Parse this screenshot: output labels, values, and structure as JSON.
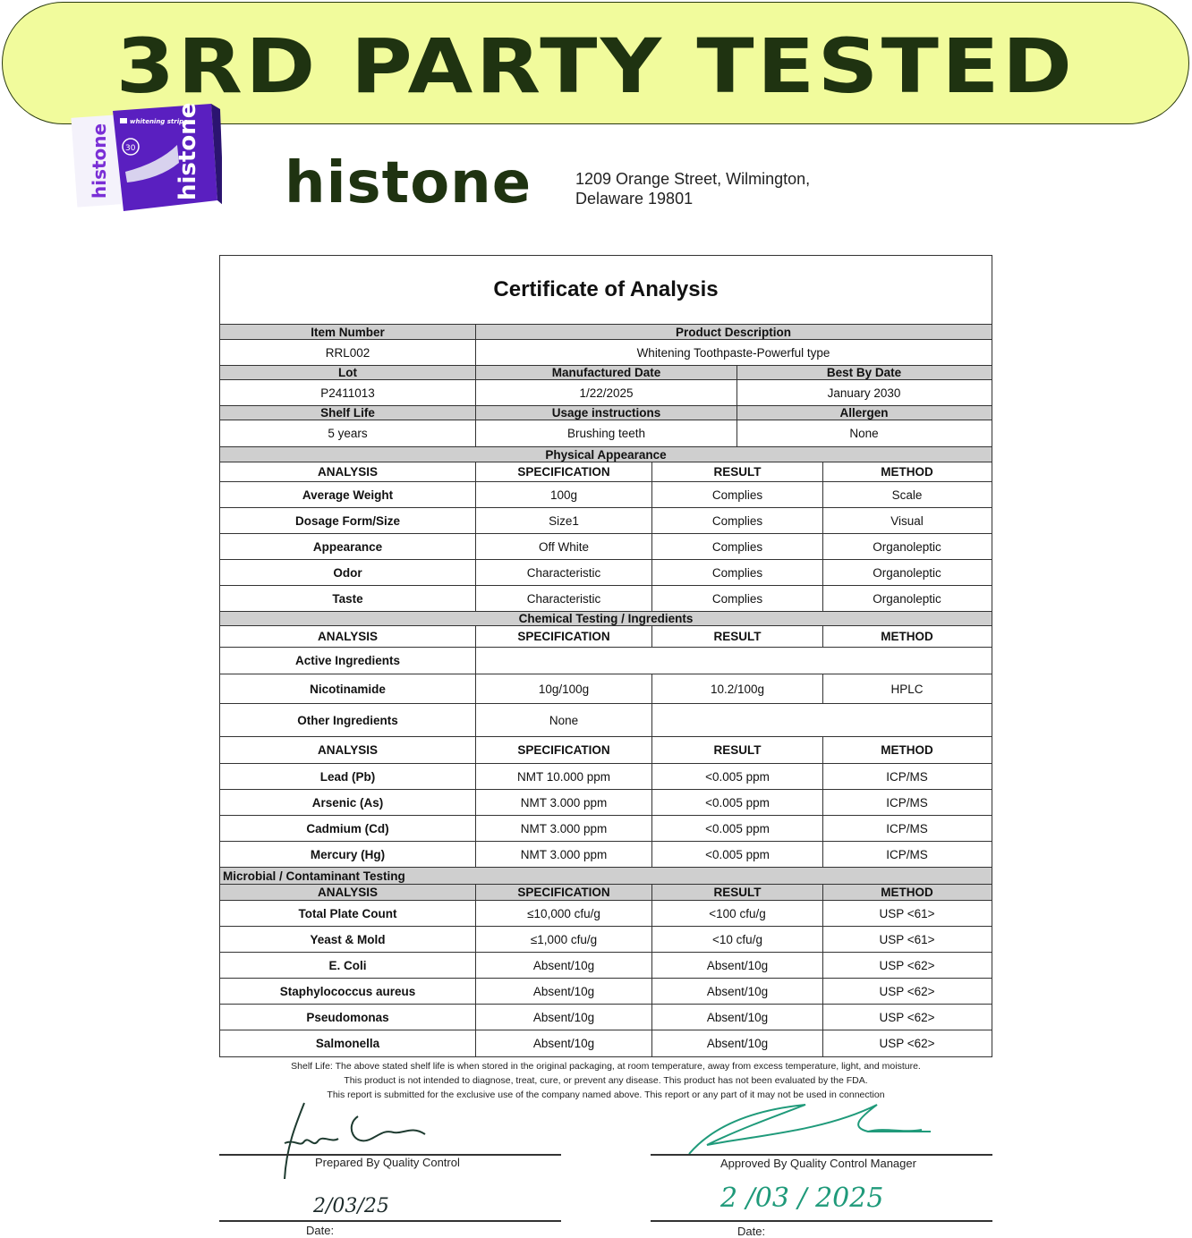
{
  "banner": {
    "text": "3RD PARTY TESTED",
    "color": "#f1fb9c"
  },
  "product_image": {
    "label": "histone",
    "sub": "whitening strips"
  },
  "brand": {
    "name": "histone",
    "color": "#1f3311"
  },
  "address": {
    "line1": "1209 Orange Street, Wilmington,",
    "line2": "Delaware 19801"
  },
  "certificate": {
    "title": "Certificate of Analysis",
    "info": [
      {
        "headers": [
          "Item Number",
          "Product Description"
        ],
        "values": [
          "RRL002",
          "Whitening Toothpaste-Powerful type"
        ]
      },
      {
        "headers": [
          "Lot",
          "Manufactured Date",
          "Best By Date"
        ],
        "values": [
          "P2411013",
          "1/22/2025",
          "January 2030"
        ]
      },
      {
        "headers": [
          "Shelf Life",
          "Usage instructions",
          "Allergen"
        ],
        "values": [
          "5 years",
          "Brushing teeth",
          "None"
        ]
      }
    ],
    "columns": [
      "ANALYSIS",
      "SPECIFICATION",
      "RESULT",
      "METHOD"
    ],
    "physical": {
      "title": "Physical Appearance",
      "rows": [
        [
          "Average Weight",
          "100g",
          "Complies",
          "Scale"
        ],
        [
          "Dosage Form/Size",
          "Size1",
          "Complies",
          "Visual"
        ],
        [
          "Appearance",
          "Off White",
          "Complies",
          "Organoleptic"
        ],
        [
          "Odor",
          "Characteristic",
          "Complies",
          "Organoleptic"
        ],
        [
          "Taste",
          "Characteristic",
          "Complies",
          "Organoleptic"
        ]
      ]
    },
    "chemical": {
      "title": "Chemical Testing / Ingredients",
      "active_label": "Active Ingredients",
      "rows": [
        [
          "Nicotinamide",
          "10g/100g",
          "10.2/100g",
          "HPLC"
        ]
      ],
      "other_label": "Other Ingredients",
      "other_value": "None",
      "metals": [
        [
          "Lead (Pb)",
          "NMT 10.000 ppm",
          "<0.005 ppm",
          "ICP/MS"
        ],
        [
          "Arsenic (As)",
          "NMT 3.000 ppm",
          "<0.005 ppm",
          "ICP/MS"
        ],
        [
          "Cadmium (Cd)",
          "NMT 3.000 ppm",
          "<0.005 ppm",
          "ICP/MS"
        ],
        [
          "Mercury (Hg)",
          "NMT 3.000 ppm",
          "<0.005 ppm",
          "ICP/MS"
        ]
      ]
    },
    "microbial": {
      "title": "Microbial / Contaminant Testing",
      "rows": [
        [
          "Total Plate Count",
          "≤10,000 cfu/g",
          "<100 cfu/g",
          "USP <61>"
        ],
        [
          "Yeast & Mold",
          "≤1,000 cfu/g",
          "<10 cfu/g",
          "USP <61>"
        ],
        [
          "E. Coli",
          "Absent/10g",
          "Absent/10g",
          "USP <62>"
        ],
        [
          "Staphylococcus aureus",
          "Absent/10g",
          "Absent/10g",
          "USP <62>"
        ],
        [
          "Pseudomonas",
          "Absent/10g",
          "Absent/10g",
          "USP <62>"
        ],
        [
          "Salmonella",
          "Absent/10g",
          "Absent/10g",
          "USP <62>"
        ]
      ]
    }
  },
  "notes": [
    "Shelf Life:  The above stated shelf life is when stored in the original packaging, at room temperature, away from excess temperature, light, and moisture.",
    "This product is not intended to diagnose, treat, cure, or prevent any disease. This product has not been evaluated by the FDA.",
    "This report is submitted for the exclusive use of the company named above. This report or any part of it may not be used in connection"
  ],
  "signatures": {
    "prepared_label": "Prepared By Quality Control",
    "approved_label": "Approved By Quality Control Manager",
    "date_label": "Date:",
    "prepared_date": "2/03/25",
    "approved_date": "2 /03 / 2025"
  }
}
